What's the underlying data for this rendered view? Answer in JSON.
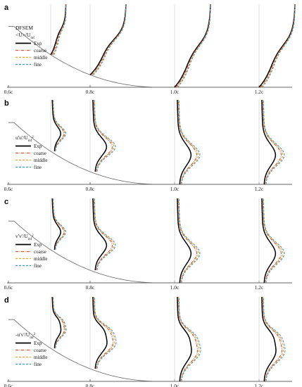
{
  "chart_data": [
    {
      "panel": "a",
      "type": "line",
      "title": "",
      "legend_title": "DFSEM",
      "legend_quantity": "<U>/U",
      "legend_sub": "inf",
      "x_ticks": [
        "0.6c",
        "0.8c",
        "1.0c",
        "1.2c"
      ],
      "stations": [
        "0.65c",
        "0.8c",
        "1.0c",
        "1.2c"
      ],
      "legend_placement": "left-middle",
      "grid": false,
      "series": [
        {
          "name": "Exp",
          "color": "#000000",
          "dash": "solid"
        },
        {
          "name": "coarse",
          "color": "#d9532c",
          "dash": "dashdot"
        },
        {
          "name": "middle",
          "color": "#f0a020",
          "dash": "dashed"
        },
        {
          "name": "fine",
          "color": "#3399cc",
          "dash": "dashed"
        }
      ]
    },
    {
      "panel": "b",
      "type": "line",
      "title": "",
      "legend_title": "",
      "legend_quantity": "u'u'/U",
      "legend_sub": "inf",
      "legend_sup": "2",
      "x_ticks": [
        "0.6c",
        "0.8c",
        "1.0c",
        "1.2c"
      ],
      "stations": [
        "0.65c",
        "0.8c",
        "1.0c",
        "1.2c"
      ],
      "legend_placement": "left-middle",
      "grid": false,
      "series": [
        {
          "name": "Exp",
          "color": "#000000",
          "dash": "solid"
        },
        {
          "name": "coarse",
          "color": "#d9532c",
          "dash": "dashdot"
        },
        {
          "name": "middle",
          "color": "#f0a020",
          "dash": "dashed"
        },
        {
          "name": "fine",
          "color": "#3399cc",
          "dash": "dashed"
        }
      ]
    },
    {
      "panel": "c",
      "type": "line",
      "title": "",
      "legend_title": "",
      "legend_quantity": "v'v'/U",
      "legend_sub": "inf",
      "legend_sup": "2",
      "x_ticks": [
        "0.6c",
        "0.8c",
        "1.0c",
        "1.2c"
      ],
      "stations": [
        "0.65c",
        "0.8c",
        "1.0c",
        "1.2c"
      ],
      "legend_placement": "left-middle",
      "grid": false,
      "series": [
        {
          "name": "Exp",
          "color": "#000000",
          "dash": "solid"
        },
        {
          "name": "coarse",
          "color": "#d9532c",
          "dash": "dashdot"
        },
        {
          "name": "middle",
          "color": "#f0a020",
          "dash": "dashed"
        },
        {
          "name": "fine",
          "color": "#3399cc",
          "dash": "dashed"
        }
      ]
    },
    {
      "panel": "d",
      "type": "line",
      "title": "",
      "legend_title": "",
      "legend_quantity": "-u'v'/U",
      "legend_sub": "inf",
      "legend_sup": "2",
      "x_ticks": [
        "0.6c",
        "0.8c",
        "1.0c",
        "1.2c"
      ],
      "stations": [
        "0.65c",
        "0.8c",
        "1.0c",
        "1.2c"
      ],
      "legend_placement": "left-middle",
      "grid": false,
      "series": [
        {
          "name": "Exp",
          "color": "#000000",
          "dash": "solid"
        },
        {
          "name": "coarse",
          "color": "#d9532c",
          "dash": "dashdot"
        },
        {
          "name": "middle",
          "color": "#f0a020",
          "dash": "dashed"
        },
        {
          "name": "fine",
          "color": "#3399cc",
          "dash": "dashed"
        }
      ]
    }
  ]
}
